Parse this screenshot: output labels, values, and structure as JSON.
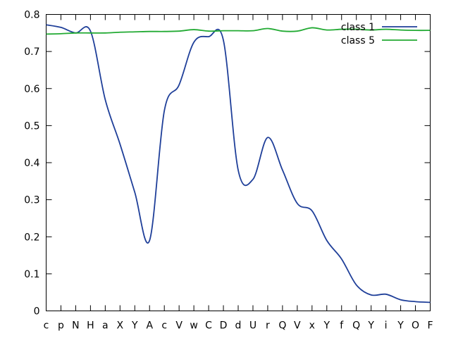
{
  "chart_data": {
    "type": "line",
    "title": "",
    "xlabel": "",
    "ylabel": "",
    "categories": [
      "c",
      "p",
      "N",
      "H",
      "a",
      "X",
      "Y",
      "A",
      "c",
      "V",
      "w",
      "C",
      "D",
      "d",
      "U",
      "r",
      "Q",
      "V",
      "x",
      "Y",
      "f",
      "Q",
      "Y",
      "i",
      "Y",
      "O",
      "F"
    ],
    "ylim": [
      0,
      0.8
    ],
    "yticks": [
      "0",
      "0.1",
      "0.2",
      "0.3",
      "0.4",
      "0.5",
      "0.6",
      "0.7",
      "0.8"
    ],
    "grid": false,
    "legend": "top-right",
    "series": [
      {
        "name": "class 1",
        "color": "#1f3f99",
        "values": [
          0.772,
          0.765,
          0.75,
          0.755,
          0.57,
          0.45,
          0.32,
          0.19,
          0.54,
          0.61,
          0.725,
          0.74,
          0.73,
          0.38,
          0.355,
          0.468,
          0.38,
          0.29,
          0.27,
          0.19,
          0.14,
          0.07,
          0.043,
          0.045,
          0.03,
          0.025,
          0.023
        ]
      },
      {
        "name": "class 5",
        "color": "#22aa33",
        "values": [
          0.747,
          0.748,
          0.75,
          0.75,
          0.75,
          0.752,
          0.753,
          0.754,
          0.754,
          0.755,
          0.759,
          0.755,
          0.756,
          0.756,
          0.756,
          0.762,
          0.755,
          0.755,
          0.764,
          0.758,
          0.76,
          0.76,
          0.758,
          0.76,
          0.758,
          0.757,
          0.757
        ]
      }
    ]
  }
}
